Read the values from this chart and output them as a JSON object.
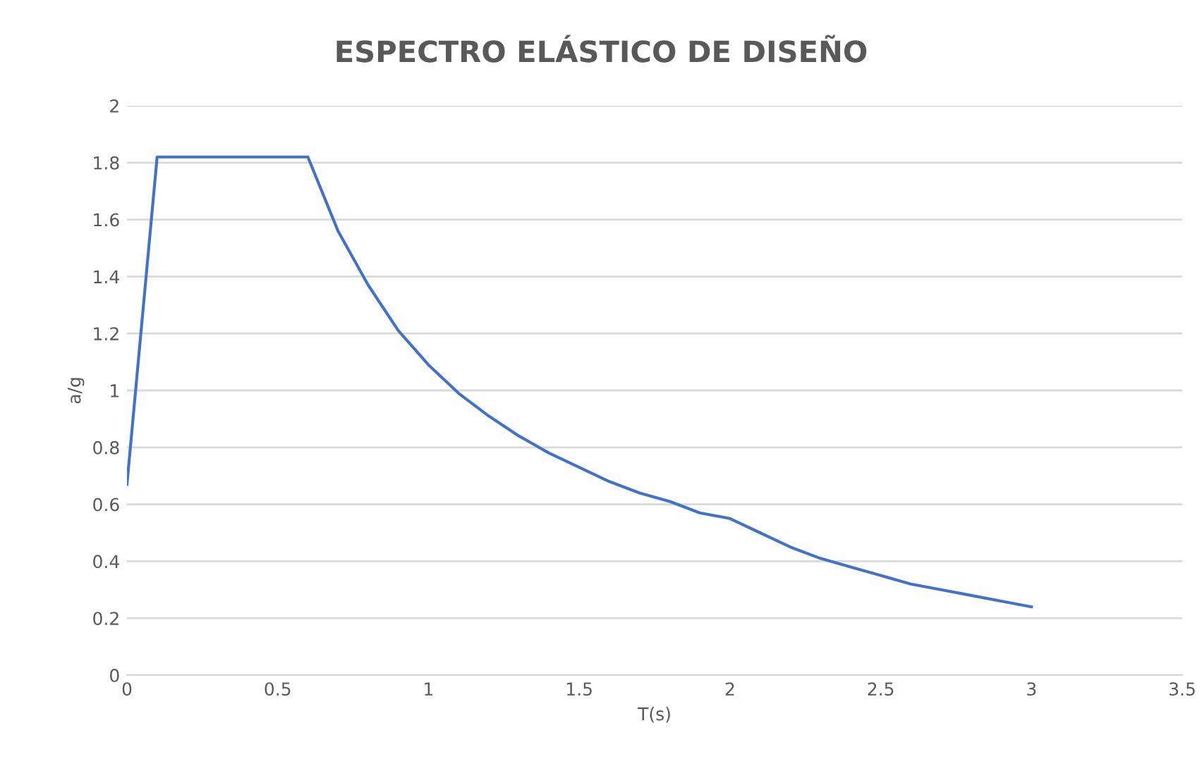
{
  "chart_data": {
    "type": "line",
    "title": "ESPECTRO ELÁSTICO DE DISEÑO",
    "xlabel": "T(s)",
    "ylabel": "a/g",
    "series": [
      {
        "color": "#4472c4",
        "x": [
          0,
          0.1,
          0.6,
          0.7,
          0.8,
          0.9,
          1.0,
          1.1,
          1.2,
          1.3,
          1.4,
          1.5,
          1.6,
          1.7,
          1.8,
          1.9,
          2.0,
          2.1,
          2.2,
          2.3,
          2.4,
          2.5,
          2.6,
          2.7,
          2.8,
          2.9,
          3.0
        ],
        "values": [
          0.67,
          1.82,
          1.82,
          1.56,
          1.37,
          1.21,
          1.09,
          0.99,
          0.91,
          0.84,
          0.78,
          0.73,
          0.68,
          0.64,
          0.61,
          0.57,
          0.55,
          0.5,
          0.45,
          0.41,
          0.38,
          0.35,
          0.32,
          0.3,
          0.28,
          0.26,
          0.24
        ]
      }
    ],
    "xlim": [
      0,
      3.5
    ],
    "xticks": [
      0,
      0.5,
      1,
      1.5,
      2,
      2.5,
      3,
      3.5
    ],
    "ylim": [
      0,
      2
    ],
    "yticks": [
      0,
      0.2,
      0.4,
      0.6,
      0.8,
      1,
      1.2,
      1.4,
      1.6,
      1.8,
      2
    ],
    "grid": true,
    "marker": "none",
    "line_style": "solid"
  }
}
